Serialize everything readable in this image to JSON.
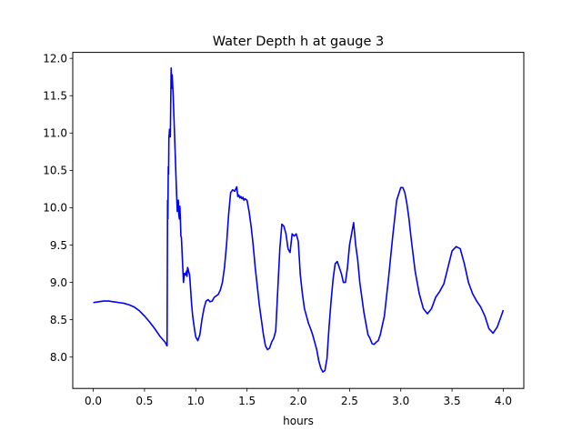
{
  "chart_data": {
    "type": "line",
    "title": "Water Depth h at gauge 3",
    "xlabel": "hours",
    "ylabel": "",
    "xlim": [
      -0.2,
      4.2
    ],
    "ylim": [
      7.58,
      12.08
    ],
    "xticks": [
      0.0,
      0.5,
      1.0,
      1.5,
      2.0,
      2.5,
      3.0,
      3.5,
      4.0
    ],
    "xtick_labels": [
      "0.0",
      "0.5",
      "1.0",
      "1.5",
      "2.0",
      "2.5",
      "3.0",
      "3.5",
      "4.0"
    ],
    "yticks": [
      8.0,
      8.5,
      9.0,
      9.5,
      10.0,
      10.5,
      11.0,
      11.5,
      12.0
    ],
    "ytick_labels": [
      "8.0",
      "8.5",
      "9.0",
      "9.5",
      "10.0",
      "10.5",
      "11.0",
      "11.5",
      "12.0"
    ],
    "grid": false,
    "legend": "none",
    "series": [
      {
        "color": "#0000ff",
        "x": [
          0.0,
          0.05,
          0.1,
          0.15,
          0.2,
          0.25,
          0.3,
          0.35,
          0.4,
          0.45,
          0.5,
          0.55,
          0.6,
          0.65,
          0.7,
          0.72,
          0.725,
          0.728,
          0.732,
          0.735,
          0.738,
          0.741,
          0.744,
          0.748,
          0.752,
          0.755,
          0.76,
          0.765,
          0.77,
          0.78,
          0.79,
          0.8,
          0.81,
          0.82,
          0.83,
          0.835,
          0.84,
          0.845,
          0.85,
          0.855,
          0.86,
          0.87,
          0.88,
          0.89,
          0.9,
          0.91,
          0.915,
          0.92,
          0.925,
          0.93,
          0.94,
          0.95,
          0.96,
          0.97,
          0.98,
          0.99,
          1.0,
          1.02,
          1.04,
          1.06,
          1.08,
          1.1,
          1.12,
          1.14,
          1.16,
          1.18,
          1.2,
          1.22,
          1.24,
          1.26,
          1.28,
          1.3,
          1.32,
          1.34,
          1.36,
          1.38,
          1.4,
          1.41,
          1.42,
          1.43,
          1.44,
          1.45,
          1.46,
          1.47,
          1.48,
          1.5,
          1.52,
          1.54,
          1.56,
          1.58,
          1.6,
          1.62,
          1.64,
          1.66,
          1.68,
          1.7,
          1.72,
          1.74,
          1.76,
          1.78,
          1.8,
          1.82,
          1.84,
          1.86,
          1.88,
          1.9,
          1.92,
          1.94,
          1.96,
          1.98,
          2.0,
          2.02,
          2.04,
          2.06,
          2.08,
          2.1,
          2.12,
          2.14,
          2.16,
          2.18,
          2.2,
          2.22,
          2.24,
          2.26,
          2.28,
          2.3,
          2.32,
          2.34,
          2.36,
          2.38,
          2.4,
          2.42,
          2.44,
          2.46,
          2.48,
          2.5,
          2.52,
          2.54,
          2.56,
          2.58,
          2.6,
          2.62,
          2.64,
          2.66,
          2.68,
          2.7,
          2.72,
          2.74,
          2.76,
          2.78,
          2.8,
          2.84,
          2.88,
          2.92,
          2.96,
          3.0,
          3.02,
          3.04,
          3.06,
          3.08,
          3.1,
          3.14,
          3.18,
          3.22,
          3.26,
          3.3,
          3.34,
          3.38,
          3.42,
          3.46,
          3.5,
          3.54,
          3.58,
          3.62,
          3.66,
          3.7,
          3.74,
          3.78,
          3.82,
          3.86,
          3.9,
          3.94,
          3.98,
          4.0
        ],
        "y": [
          8.73,
          8.74,
          8.75,
          8.75,
          8.74,
          8.73,
          8.72,
          8.7,
          8.67,
          8.62,
          8.55,
          8.47,
          8.38,
          8.28,
          8.2,
          8.15,
          10.1,
          9.85,
          10.55,
          10.45,
          10.95,
          10.98,
          11.05,
          11.05,
          10.95,
          11.3,
          11.87,
          11.6,
          11.78,
          11.5,
          11.1,
          10.7,
          10.3,
          9.95,
          10.1,
          9.9,
          9.85,
          10.02,
          9.85,
          9.62,
          9.6,
          9.3,
          9.0,
          9.12,
          9.1,
          9.15,
          9.08,
          9.2,
          9.18,
          9.15,
          9.1,
          8.9,
          8.7,
          8.55,
          8.45,
          8.35,
          8.27,
          8.22,
          8.3,
          8.5,
          8.65,
          8.75,
          8.77,
          8.74,
          8.75,
          8.8,
          8.82,
          8.84,
          8.9,
          9.0,
          9.2,
          9.5,
          9.9,
          10.2,
          10.24,
          10.22,
          10.28,
          10.15,
          10.17,
          10.13,
          10.15,
          10.12,
          10.14,
          10.1,
          10.12,
          10.1,
          9.95,
          9.75,
          9.5,
          9.2,
          8.95,
          8.7,
          8.5,
          8.3,
          8.15,
          8.1,
          8.12,
          8.2,
          8.25,
          8.35,
          8.9,
          9.45,
          9.78,
          9.75,
          9.65,
          9.45,
          9.4,
          9.65,
          9.62,
          9.65,
          9.55,
          9.1,
          8.85,
          8.65,
          8.55,
          8.45,
          8.38,
          8.3,
          8.2,
          8.1,
          7.95,
          7.85,
          7.8,
          7.82,
          7.98,
          8.4,
          8.75,
          9.05,
          9.25,
          9.28,
          9.2,
          9.12,
          9.0,
          9.0,
          9.2,
          9.5,
          9.65,
          9.8,
          9.5,
          9.3,
          9.0,
          8.8,
          8.6,
          8.45,
          8.3,
          8.25,
          8.18,
          8.17,
          8.2,
          8.22,
          8.3,
          8.55,
          9.05,
          9.6,
          10.1,
          10.27,
          10.27,
          10.2,
          10.05,
          9.85,
          9.6,
          9.15,
          8.85,
          8.65,
          8.58,
          8.65,
          8.8,
          8.88,
          8.98,
          9.2,
          9.42,
          9.48,
          9.45,
          9.25,
          9.0,
          8.85,
          8.75,
          8.67,
          8.55,
          8.38,
          8.32,
          8.4,
          8.55,
          8.63
        ]
      }
    ]
  }
}
